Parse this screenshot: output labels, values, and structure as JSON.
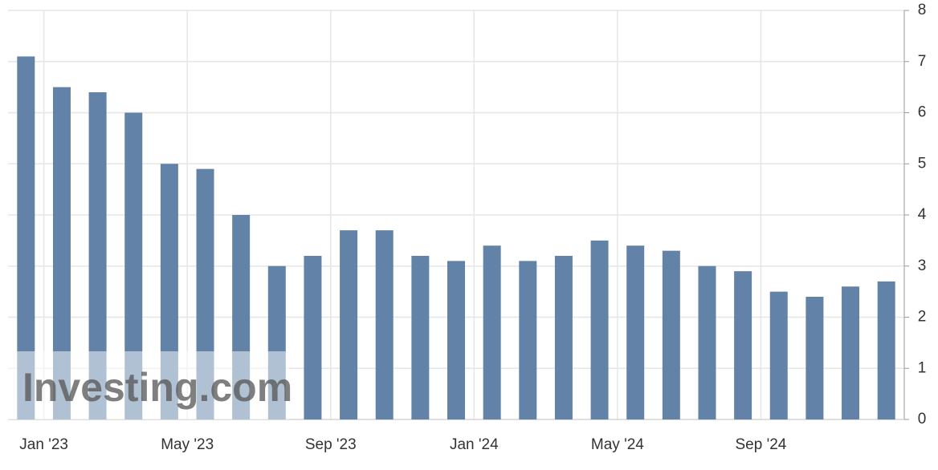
{
  "chart_data": {
    "type": "bar",
    "categories": [
      null,
      "Jan '23",
      null,
      null,
      null,
      "May '23",
      null,
      null,
      null,
      "Sep '23",
      null,
      null,
      null,
      "Jan '24",
      null,
      null,
      null,
      "May '24",
      null,
      null,
      null,
      "Sep '24",
      null,
      null,
      null
    ],
    "values": [
      7.1,
      6.5,
      6.4,
      6.0,
      5.0,
      4.9,
      4.0,
      3.0,
      3.2,
      3.7,
      3.7,
      3.2,
      3.1,
      3.4,
      3.1,
      3.2,
      3.5,
      3.4,
      3.3,
      3.0,
      2.9,
      2.5,
      2.4,
      2.6,
      2.7
    ],
    "color": "#6382a8",
    "ylim": [
      0,
      8
    ],
    "yticks": [
      0,
      1,
      2,
      3,
      4,
      5,
      6,
      7,
      8
    ],
    "grid": true,
    "watermark": "Investing.com"
  }
}
